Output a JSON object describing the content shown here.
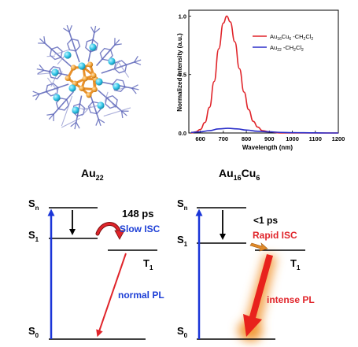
{
  "colors": {
    "au_atom": "#2ec4e6",
    "cu_atom": "#f0a030",
    "ligand": "#5a63b8",
    "series_red": "#e0242a",
    "series_blue": "#2b2fc9",
    "excitation": "#1a35d8",
    "label_blue": "#1d3fd6",
    "label_red": "#e0242a",
    "glow": "#f29a3a"
  },
  "structure_panel": {
    "icon": "cluster-structure-icon"
  },
  "spectrum": {
    "y_axis_label": "Normalized Intensity (a.u.)",
    "x_axis_label": "Wavelength (nm)",
    "legend": [
      {
        "formula": "Au",
        "sub1": "16",
        "mid": "Cu",
        "sub2": "6",
        "rest": " -CH",
        "sub3": "2",
        "end": "Cl",
        "sub4": "2"
      },
      {
        "formula": "Au",
        "sub1": "22",
        "mid": "",
        "sub2": "",
        "rest": " -CH",
        "sub3": "2",
        "end": "Cl",
        "sub4": "2"
      }
    ]
  },
  "chart_data": {
    "type": "line",
    "title": "",
    "xlabel": "Wavelength (nm)",
    "ylabel": "Normalized Intensity (a.u.)",
    "xlim": [
      550,
      1200
    ],
    "ylim": [
      0,
      1.05
    ],
    "xticks": [
      600,
      700,
      800,
      900,
      1000,
      1100,
      1200
    ],
    "xtick_labels": [
      "600",
      "700",
      "800",
      "900",
      "1000",
      "1100",
      "1200"
    ],
    "yticks": [
      0,
      0.5,
      1.0
    ],
    "ytick_labels": [
      "0.0",
      "0.5",
      "1.0"
    ],
    "legend_position": "top-right",
    "series": [
      {
        "name": "Au16Cu6 -CH2Cl2",
        "color": "#e0242a",
        "x": [
          560,
          580,
          600,
          620,
          640,
          660,
          680,
          700,
          715,
          730,
          750,
          770,
          790,
          810,
          830,
          850,
          870,
          900,
          950,
          1000,
          1050,
          1100,
          1150,
          1200
        ],
        "y": [
          0.0,
          0.01,
          0.03,
          0.09,
          0.22,
          0.44,
          0.72,
          0.94,
          1.0,
          0.95,
          0.78,
          0.55,
          0.35,
          0.2,
          0.1,
          0.05,
          0.02,
          0.01,
          0.0,
          0.0,
          0.0,
          0.0,
          0.0,
          0.0
        ]
      },
      {
        "name": "Au22 -CH2Cl2",
        "color": "#2b2fc9",
        "x": [
          560,
          600,
          640,
          680,
          720,
          760,
          800,
          850,
          900,
          950,
          1000,
          1050,
          1100,
          1150,
          1200
        ],
        "y": [
          0.005,
          0.01,
          0.02,
          0.035,
          0.04,
          0.035,
          0.025,
          0.015,
          0.01,
          0.005,
          0.003,
          0.002,
          0.001,
          0.0,
          0.0
        ]
      }
    ]
  },
  "diagram_left": {
    "title_main": "Au",
    "title_sub": "22",
    "sn_main": "S",
    "sn_sub": "n",
    "s1_main": "S",
    "s1_sub": "1",
    "s0_main": "S",
    "s0_sub": "0",
    "t1_main": "T",
    "t1_sub": "1",
    "time_label": "148 ps",
    "isc_label": "Slow ISC",
    "pl_label": "normal PL"
  },
  "diagram_right": {
    "title_main": "Au",
    "title_sub1": "16",
    "title_mid": "Cu",
    "title_sub2": "6",
    "sn_main": "S",
    "sn_sub": "n",
    "s1_main": "S",
    "s1_sub": "1",
    "s0_main": "S",
    "s0_sub": "0",
    "t1_main": "T",
    "t1_sub": "1",
    "time_label": "<1 ps",
    "isc_label": "Rapid ISC",
    "pl_label": "intense PL"
  }
}
